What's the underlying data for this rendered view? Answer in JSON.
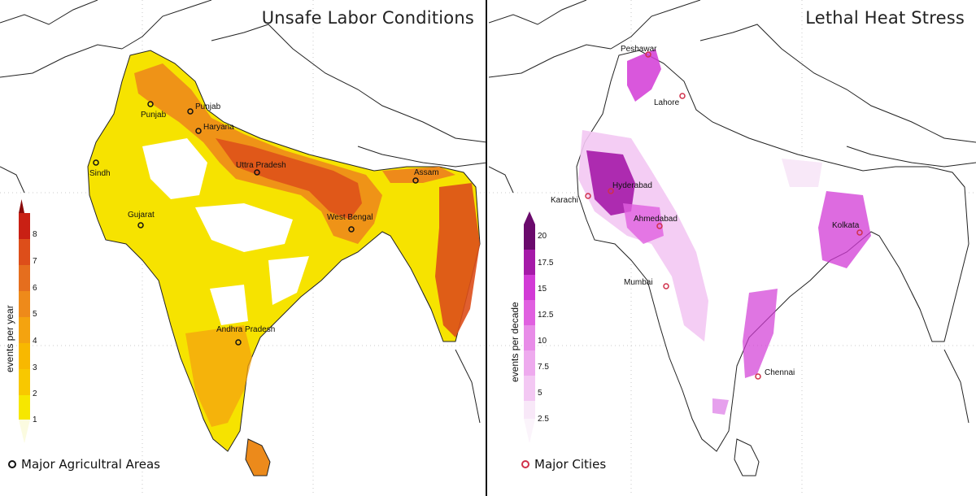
{
  "left_panel": {
    "title": "Unsafe Labor Conditions",
    "legend_title": "events per year",
    "legend_ticks": [
      "1",
      "2",
      "3",
      "4",
      "5",
      "6",
      "7",
      "8"
    ],
    "legend_colors": [
      "#f6e700",
      "#f8c800",
      "#f4a30f",
      "#ee8a1a",
      "#e56e1e",
      "#dd4e1a",
      "#c92014",
      "#8a0a0a"
    ],
    "marker_label": "Major Agricultral Areas",
    "marker_color": "#111111",
    "places": [
      {
        "name": "Punjab",
        "label": "Punjab"
      },
      {
        "name": "Punjab-2",
        "label": "Punjab"
      },
      {
        "name": "Haryana",
        "label": "Haryana"
      },
      {
        "name": "Sindh",
        "label": "Sindh"
      },
      {
        "name": "Uttra Pradesh",
        "label": "Uttra Pradesh"
      },
      {
        "name": "Assam",
        "label": "Assam"
      },
      {
        "name": "Gujarat",
        "label": "Gujarat"
      },
      {
        "name": "West Bengal",
        "label": "West Bengal"
      },
      {
        "name": "Andhra Pradesh",
        "label": "Andhra Pradesh"
      }
    ]
  },
  "right_panel": {
    "title": "Lethal Heat Stress",
    "legend_title": "events per decade",
    "legend_ticks": [
      "2.5",
      "5",
      "7.5",
      "10",
      "12.5",
      "15",
      "17.5",
      "20"
    ],
    "legend_colors": [
      "#f8e8f8",
      "#f3c8f3",
      "#eeaaee",
      "#e88ce8",
      "#e060e0",
      "#d23ad6",
      "#a51aa8",
      "#6a0a6c"
    ],
    "marker_label": "Major Cities",
    "marker_color": "#d0304a",
    "places": [
      {
        "name": "Peshawar",
        "label": "Peshawar"
      },
      {
        "name": "Lahore",
        "label": "Lahore"
      },
      {
        "name": "Karachi",
        "label": "Karachi"
      },
      {
        "name": "Hyderabad",
        "label": "Hyderabad"
      },
      {
        "name": "Ahmedabad",
        "label": "Ahmedabad"
      },
      {
        "name": "Mumbai",
        "label": "Mumbai"
      },
      {
        "name": "Kolkata",
        "label": "Kolkata"
      },
      {
        "name": "Chennai",
        "label": "Chennai"
      }
    ]
  }
}
